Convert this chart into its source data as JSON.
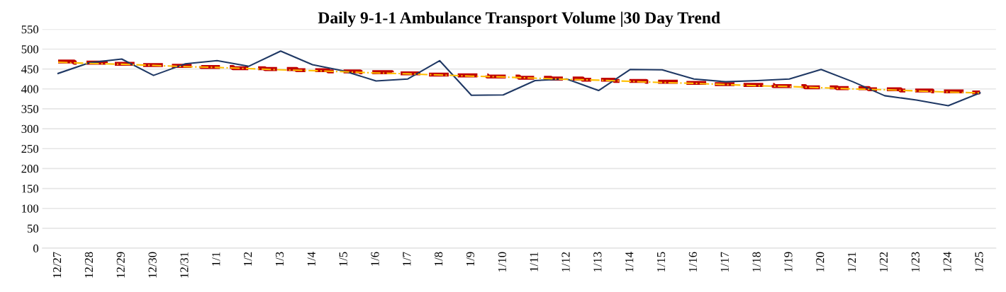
{
  "chart_data": {
    "type": "line",
    "title": "Daily 9-1-1 Ambulance Transport Volume |30 Day Trend",
    "categories": [
      "12/27",
      "12/28",
      "12/29",
      "12/30",
      "12/31",
      "1/1",
      "1/2",
      "1/3",
      "1/4",
      "1/5",
      "1/6",
      "1/7",
      "1/8",
      "1/9",
      "1/10",
      "1/11",
      "1/12",
      "1/13",
      "1/14",
      "1/15",
      "1/16",
      "1/17",
      "1/18",
      "1/19",
      "1/20",
      "1/21",
      "1/22",
      "1/23",
      "1/24",
      "1/25"
    ],
    "series": [
      {
        "color": "#1f3864",
        "line_style": "solid",
        "values": [
          439,
          466,
          475,
          434,
          463,
          471,
          457,
          495,
          461,
          445,
          420,
          425,
          471,
          384,
          385,
          421,
          425,
          396,
          449,
          448,
          425,
          418,
          421,
          425,
          449,
          418,
          383,
          372,
          358,
          390
        ]
      },
      {
        "type": "step",
        "color": "#c00000",
        "line_style": "dashed",
        "values": [
          469,
          466,
          463,
          460,
          458,
          455,
          452,
          450,
          447,
          444,
          442,
          439,
          436,
          434,
          431,
          428,
          426,
          423,
          420,
          418,
          415,
          412,
          410,
          407,
          404,
          402,
          399,
          396,
          394,
          391
        ]
      },
      {
        "type": "line",
        "color": "#ffc000",
        "line_style": "dashdot",
        "values": [
          467,
          464,
          462,
          459,
          456,
          454,
          451,
          448,
          446,
          443,
          440,
          438,
          435,
          432,
          430,
          427,
          424,
          422,
          419,
          416,
          414,
          411,
          408,
          406,
          403,
          400,
          398,
          395,
          392,
          390
        ]
      }
    ],
    "ylim": [
      0,
      550
    ],
    "yticks": [
      0,
      50,
      100,
      150,
      200,
      250,
      300,
      350,
      400,
      450,
      500,
      550
    ],
    "grid": "y",
    "legend": false,
    "marker": "none"
  }
}
